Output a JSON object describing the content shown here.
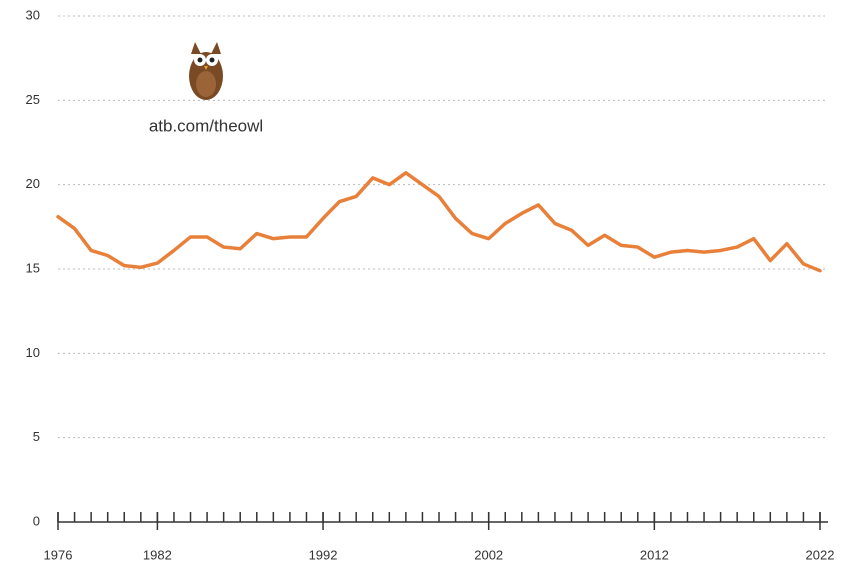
{
  "chart_data": {
    "type": "line",
    "annotation": "atb.com/theowl",
    "x": [
      1976,
      1977,
      1978,
      1979,
      1980,
      1981,
      1982,
      1983,
      1984,
      1985,
      1986,
      1987,
      1988,
      1989,
      1990,
      1991,
      1992,
      1993,
      1994,
      1995,
      1996,
      1997,
      1998,
      1999,
      2000,
      2001,
      2002,
      2003,
      2004,
      2005,
      2006,
      2007,
      2008,
      2009,
      2010,
      2011,
      2012,
      2013,
      2014,
      2015,
      2016,
      2017,
      2018,
      2019,
      2020,
      2021,
      2022
    ],
    "values": [
      18.1,
      17.4,
      16.1,
      15.8,
      15.2,
      15.1,
      15.35,
      16.1,
      16.9,
      16.9,
      16.3,
      16.2,
      17.1,
      16.8,
      16.9,
      16.9,
      18.0,
      19.0,
      19.3,
      20.4,
      20.0,
      20.7,
      20.0,
      19.3,
      18.0,
      17.1,
      16.8,
      17.7,
      18.3,
      18.8,
      17.7,
      17.3,
      16.4,
      17.0,
      16.4,
      16.3,
      15.7,
      16.0,
      16.1,
      16.0,
      16.1,
      16.3,
      16.8,
      15.5,
      16.5,
      15.3,
      14.9
    ],
    "color": "#e8803a",
    "xlim": [
      1976,
      2022
    ],
    "xticks": [
      1976,
      1982,
      1992,
      2002,
      2012,
      2022
    ],
    "ylim": [
      0,
      30
    ],
    "yticks": [
      0,
      5,
      10,
      15,
      20,
      25,
      30
    ],
    "grid": true
  }
}
